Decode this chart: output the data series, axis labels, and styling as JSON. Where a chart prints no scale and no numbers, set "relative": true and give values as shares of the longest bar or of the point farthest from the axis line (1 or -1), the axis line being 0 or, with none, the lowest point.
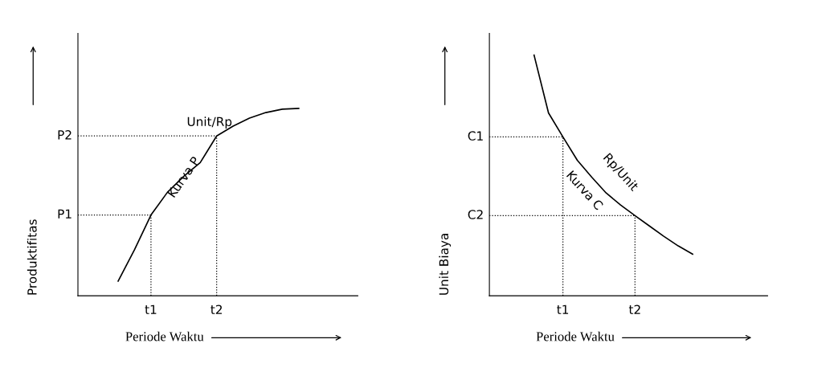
{
  "chart_data": [
    {
      "type": "line",
      "relative": true,
      "xlabel": "Periode Waktu",
      "ylabel": "Produktifitas",
      "categories": [
        null,
        null,
        "t1",
        null,
        null,
        null,
        "t2",
        null,
        null,
        null,
        null,
        null
      ],
      "series": [
        {
          "color": "#000000",
          "values": [
            0.078,
            0.246,
            0.431,
            0.552,
            0.638,
            0.711,
            0.853,
            0.905,
            0.948,
            0.978,
            0.996,
            1.0
          ]
        }
      ],
      "ref_lines": [
        {
          "axis": "x",
          "value": "t1",
          "line_style": "dotted"
        },
        {
          "axis": "x",
          "value": "t2",
          "line_style": "dotted"
        },
        {
          "axis": "y",
          "value": 0.431,
          "label": "P1",
          "line_style": "dotted"
        },
        {
          "axis": "y",
          "value": 0.853,
          "label": "P2",
          "line_style": "dotted"
        }
      ],
      "annotations": [
        "Unit/Rp",
        "Kurva P"
      ]
    },
    {
      "type": "line",
      "relative": true,
      "xlabel": "Periode Waktu",
      "ylabel": "Unit Biaya",
      "categories": [
        null,
        null,
        "t1",
        null,
        null,
        null,
        null,
        "t2",
        null,
        null,
        null,
        null
      ],
      "series": [
        {
          "color": "#000000",
          "values": [
            1.0,
            0.76,
            0.66,
            0.563,
            0.493,
            0.427,
            0.377,
            0.333,
            0.29,
            0.247,
            0.207,
            0.173
          ]
        }
      ],
      "ref_lines": [
        {
          "axis": "x",
          "value": "t1",
          "line_style": "dotted"
        },
        {
          "axis": "x",
          "value": "t2",
          "line_style": "dotted"
        },
        {
          "axis": "y",
          "value": 0.66,
          "label": "C1",
          "line_style": "dotted"
        },
        {
          "axis": "y",
          "value": 0.333,
          "label": "C2",
          "line_style": "dotted"
        }
      ],
      "annotations": [
        "Rp/Unit",
        "Kurva C"
      ]
    }
  ]
}
